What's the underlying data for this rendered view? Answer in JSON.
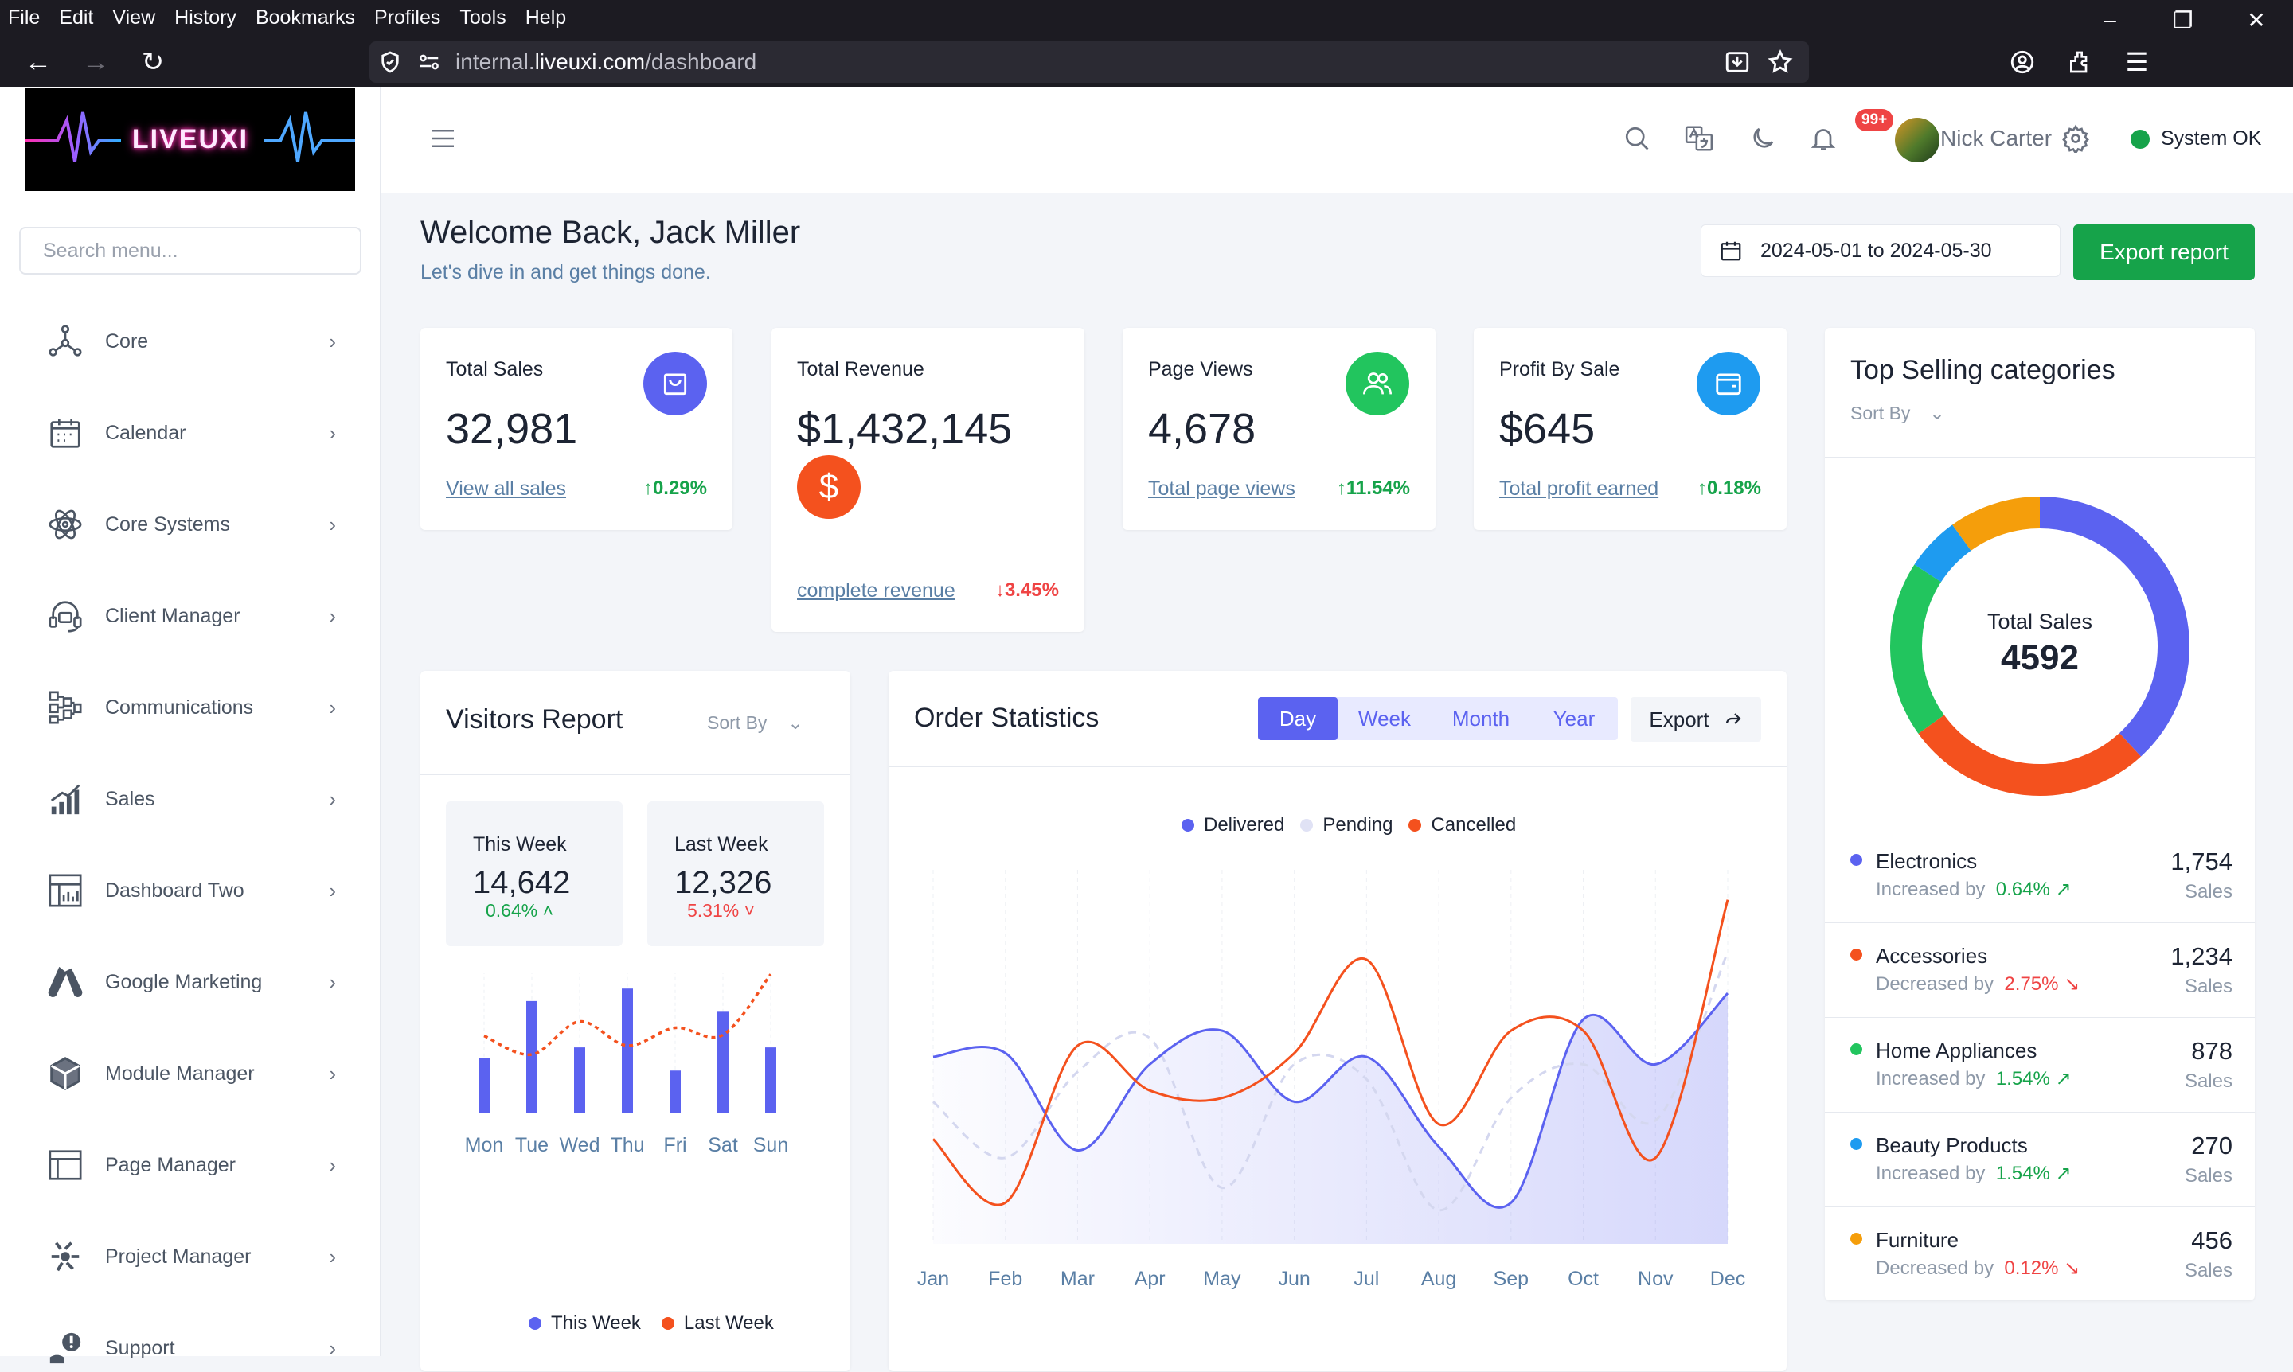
{
  "browser": {
    "menu": [
      "File",
      "Edit",
      "View",
      "History",
      "Bookmarks",
      "Profiles",
      "Tools",
      "Help"
    ],
    "url_prefix": "internal.",
    "url_domain": "liveuxi.com",
    "url_path": "/dashboard"
  },
  "sidebar": {
    "logo_text": "LIVEUXI",
    "search_placeholder": "Search menu...",
    "items": [
      {
        "label": "Core",
        "icon": "molecule-icon"
      },
      {
        "label": "Calendar",
        "icon": "calendar-icon"
      },
      {
        "label": "Core Systems",
        "icon": "atom-icon"
      },
      {
        "label": "Client Manager",
        "icon": "headset-icon"
      },
      {
        "label": "Communications",
        "icon": "network-icon"
      },
      {
        "label": "Sales",
        "icon": "bar-chart-icon"
      },
      {
        "label": "Dashboard Two",
        "icon": "dashboard-icon"
      },
      {
        "label": "Google Marketing",
        "icon": "google-ads-icon"
      },
      {
        "label": "Module Manager",
        "icon": "cube-icon"
      },
      {
        "label": "Page Manager",
        "icon": "layout-icon"
      },
      {
        "label": "Project Manager",
        "icon": "project-icon"
      },
      {
        "label": "Support",
        "icon": "support-icon"
      }
    ]
  },
  "topbar": {
    "notification_badge": "99+",
    "user_name": "Nick Carter",
    "status": "System OK"
  },
  "header": {
    "welcome": "Welcome Back, Jack Miller",
    "subtitle": "Let's dive in and get things done.",
    "date_range": "2024-05-01 to 2024-05-30",
    "export_label": "Export report"
  },
  "kpis": [
    {
      "title": "Total Sales",
      "value": "32,981",
      "link": "View all sales",
      "change": "↑0.29%",
      "direction": "up",
      "icon_color": "#5b62f0",
      "icon": "shopping-bag-icon"
    },
    {
      "title": "Total Revenue",
      "value": "$1,432,145",
      "link": "complete revenue",
      "change": "↓3.45%",
      "direction": "down",
      "icon_color": "#f4511e",
      "icon": "dollar-icon"
    },
    {
      "title": "Page Views",
      "value": "4,678",
      "link": "Total page views",
      "change": "↑11.54%",
      "direction": "up",
      "icon_color": "#22c55e",
      "icon": "users-icon"
    },
    {
      "title": "Profit By Sale",
      "value": "$645",
      "link": "Total profit earned",
      "change": "↑0.18%",
      "direction": "up",
      "icon_color": "#1e9bf0",
      "icon": "wallet-icon"
    }
  ],
  "visitors": {
    "title": "Visitors Report",
    "sort_label": "Sort By",
    "this_week_label": "This Week",
    "this_week_value": "14,642",
    "this_week_change": "0.64%",
    "last_week_label": "Last Week",
    "last_week_value": "12,326",
    "last_week_change": "5.31%",
    "legend_this": "This Week",
    "legend_last": "Last Week"
  },
  "orders": {
    "title": "Order Statistics",
    "tabs": [
      "Day",
      "Week",
      "Month",
      "Year"
    ],
    "active_tab": "Day",
    "export_label": "Export",
    "legend": [
      "Delivered",
      "Pending",
      "Cancelled"
    ]
  },
  "top_selling": {
    "title": "Top Selling categories",
    "sort_label": "Sort By",
    "center_label": "Total Sales",
    "center_value": "4592",
    "categories": [
      {
        "name": "Electronics",
        "trend": "Increased by",
        "pct": "0.64%",
        "direction": "up",
        "value": "1,754",
        "unit": "Sales",
        "color": "#5b62f0"
      },
      {
        "name": "Accessories",
        "trend": "Decreased by",
        "pct": "2.75%",
        "direction": "down",
        "value": "1,234",
        "unit": "Sales",
        "color": "#f4511e"
      },
      {
        "name": "Home Appliances",
        "trend": "Increased by",
        "pct": "1.54%",
        "direction": "up",
        "value": "878",
        "unit": "Sales",
        "color": "#22c55e"
      },
      {
        "name": "Beauty Products",
        "trend": "Increased by",
        "pct": "1.54%",
        "direction": "up",
        "value": "270",
        "unit": "Sales",
        "color": "#1e9bf0"
      },
      {
        "name": "Furniture",
        "trend": "Decreased by",
        "pct": "0.12%",
        "direction": "down",
        "value": "456",
        "unit": "Sales",
        "color": "#f59e0b"
      }
    ]
  },
  "colors": {
    "primary": "#5b62f0",
    "success": "#16a34a",
    "danger": "#ef4444",
    "orange": "#f4511e",
    "amber": "#f59e0b",
    "sky": "#1e9bf0"
  },
  "chart_data": [
    {
      "type": "bar",
      "categories": [
        "Mon",
        "Tue",
        "Wed",
        "Thu",
        "Fri",
        "Sat",
        "Sun"
      ],
      "series": [
        {
          "name": "This Week",
          "type": "bar",
          "values": [
            124,
            252,
            148,
            280,
            96,
            228,
            148
          ]
        },
        {
          "name": "Last Week",
          "type": "line",
          "values": [
            174,
            132,
            206,
            152,
            192,
            176,
            312
          ]
        }
      ],
      "ylim": [
        0,
        320
      ]
    },
    {
      "type": "line",
      "categories": [
        "Jan",
        "Feb",
        "Mar",
        "Apr",
        "May",
        "Jun",
        "Jul",
        "Aug",
        "Sep",
        "Oct",
        "Nov",
        "Dec"
      ],
      "series": [
        {
          "name": "Delivered",
          "values": [
            50,
            51,
            25,
            48,
            57,
            38,
            50,
            26,
            11,
            60,
            48,
            67
          ]
        },
        {
          "name": "Pending",
          "values": [
            38,
            23,
            46,
            55,
            15,
            48,
            44,
            9,
            39,
            48,
            33,
            78
          ]
        },
        {
          "name": "Cancelled",
          "values": [
            28,
            11,
            53,
            41,
            39,
            51,
            76,
            32,
            57,
            57,
            23,
            92
          ]
        }
      ],
      "ylim": [
        0,
        100
      ]
    },
    {
      "type": "pie",
      "categories": [
        "Electronics",
        "Accessories",
        "Home Appliances",
        "Beauty Products",
        "Furniture"
      ],
      "values": [
        1754,
        1234,
        878,
        270,
        456
      ],
      "title": "Total Sales",
      "total": "4592"
    }
  ]
}
